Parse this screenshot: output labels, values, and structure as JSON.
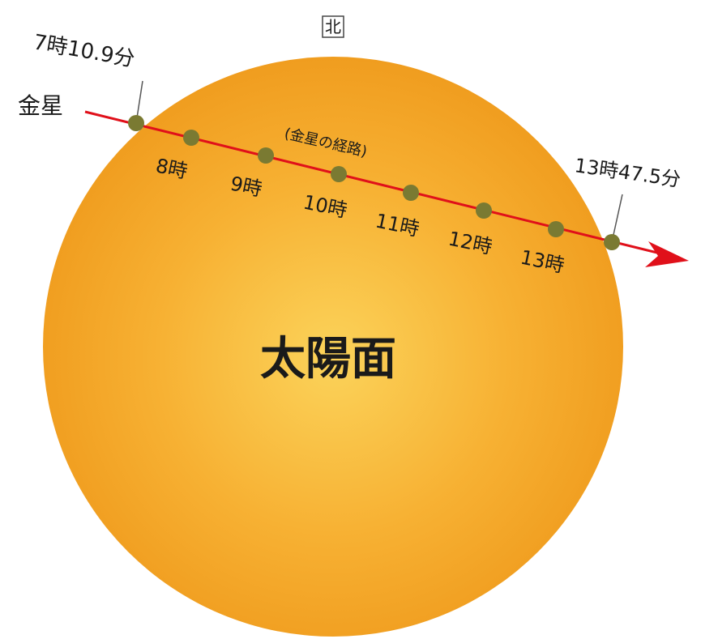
{
  "north": "北",
  "venus": "金星",
  "path_label": "(金星の経路)",
  "start_time": "7時10.9分",
  "end_time": "13時47.5分",
  "hours": [
    "8時",
    "9時",
    "10時",
    "11時",
    "12時",
    "13時"
  ],
  "sun": "太陽面"
}
